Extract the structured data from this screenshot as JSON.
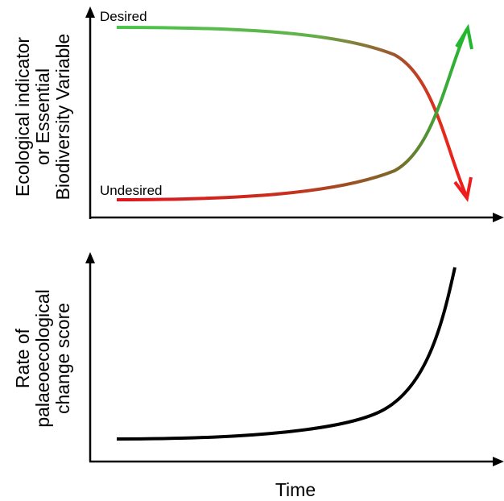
{
  "top_panel": {
    "y_axis_label": [
      "Ecological indicator",
      "or Essential",
      "Biodiversity Variable"
    ],
    "desired_label": "Desired",
    "undesired_label": "Undesired"
  },
  "bottom_panel": {
    "y_axis_label": [
      "Rate of",
      "palaeoecological",
      "change score"
    ]
  },
  "x_axis_label": "Time"
}
